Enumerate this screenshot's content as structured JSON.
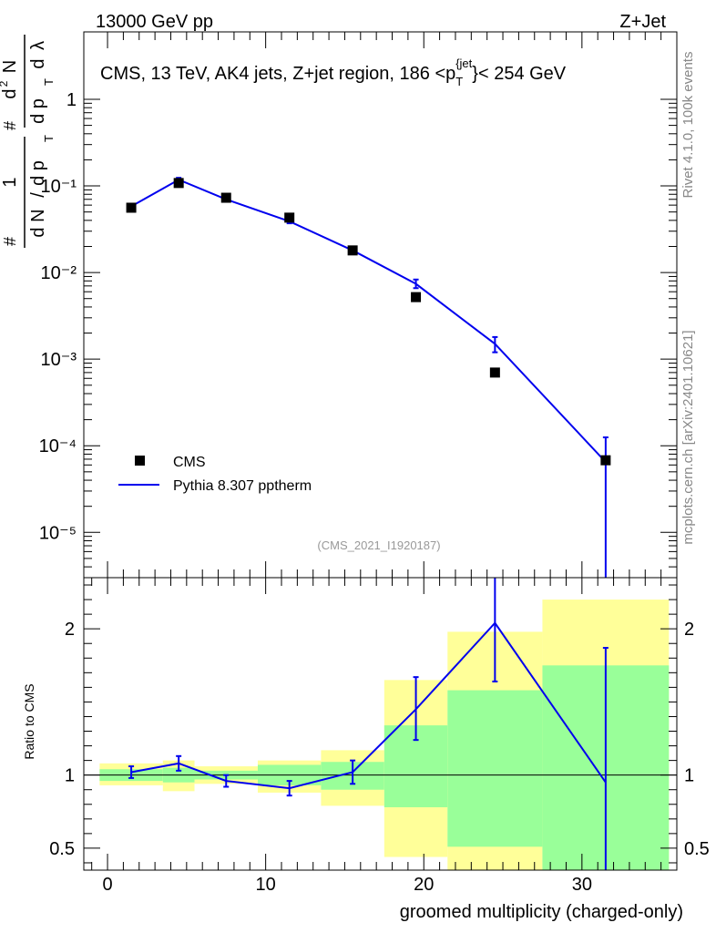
{
  "header": {
    "left": "13000 GeV pp",
    "right": "Z+Jet"
  },
  "side": {
    "rivet": "Rivet 4.1.0,  100k events",
    "mcplots": "mcplots.cern.ch [arXiv:2401.10621]"
  },
  "colors": {
    "data": "#000000",
    "mc": "#0000ee",
    "band_yellow": "#ffff99",
    "band_green": "#99ff99",
    "axis": "#000000",
    "watermark": "#999999"
  },
  "chart_data": [
    {
      "type": "scatter",
      "panel": "main",
      "title": "CMS, 13 TeV, AK4 jets, Z+jet region, 186 <p_T^{jet}< 254 GeV",
      "title_parts": {
        "pre": "CMS, 13 TeV, AK4 jets, Z+jet region, 186 <p",
        "sub": "T",
        "sup": "{jet",
        "post": "}< 254 GeV"
      },
      "ylabel": "#frac{1}{dN/dp_T} #frac{d^2N}{dp_T dλ}",
      "yscale": "log",
      "ylim": [
        3e-06,
        6
      ],
      "xlim": [
        -1.5,
        36
      ],
      "yticks": [
        {
          "value": 1,
          "label": "1"
        },
        {
          "value": 0.1,
          "label": "10⁻¹"
        },
        {
          "value": 0.01,
          "label": "10⁻²"
        },
        {
          "value": 0.001,
          "label": "10⁻³"
        },
        {
          "value": 0.0001,
          "label": "10⁻⁴"
        },
        {
          "value": 1e-05,
          "label": "10⁻⁵"
        }
      ],
      "watermark": "(CMS_2021_I1920187)",
      "legend": [
        {
          "label": "CMS",
          "kind": "marker"
        },
        {
          "label": "Pythia 8.307 pptherm",
          "kind": "line"
        }
      ],
      "series": [
        {
          "name": "CMS",
          "x": [
            1.5,
            4.5,
            7.5,
            11.5,
            15.5,
            19.5,
            24.5,
            31.5
          ],
          "values": [
            0.056,
            0.108,
            0.073,
            0.043,
            0.018,
            0.0052,
            0.0007,
            6.8e-05
          ]
        },
        {
          "name": "Pythia 8.307 pptherm",
          "x": [
            1.5,
            4.5,
            7.5,
            11.5,
            15.5,
            19.5,
            24.5,
            31.5
          ],
          "values": [
            0.058,
            0.118,
            0.07,
            0.039,
            0.018,
            0.0074,
            0.0015,
            6.5e-05
          ],
          "err_up": [
            0.06,
            0.124,
            0.072,
            0.041,
            0.0186,
            0.0083,
            0.0018,
            0.000125
          ],
          "err_down": [
            0.056,
            0.113,
            0.068,
            0.037,
            0.0174,
            0.0066,
            0.0012,
            1e-06
          ]
        }
      ]
    },
    {
      "type": "line",
      "panel": "ratio",
      "ylabel": "Ratio to CMS",
      "xlabel": "groomed multiplicity (charged-only)",
      "ylim": [
        0.35,
        2.35
      ],
      "xlim": [
        -1.5,
        36
      ],
      "yticks": [
        {
          "value": 0.5,
          "label": "0.5"
        },
        {
          "value": 1,
          "label": "1"
        },
        {
          "value": 2,
          "label": "2"
        }
      ],
      "xticks": [
        {
          "value": 0,
          "label": "0"
        },
        {
          "value": 10,
          "label": "10"
        },
        {
          "value": 20,
          "label": "20"
        },
        {
          "value": 30,
          "label": "30"
        }
      ],
      "bands": [
        {
          "x_lo": -0.5,
          "x_hi": 3.5,
          "yellow": [
            0.93,
            1.08
          ],
          "green": [
            0.96,
            1.04
          ]
        },
        {
          "x_lo": 3.5,
          "x_hi": 5.5,
          "yellow": [
            0.89,
            1.1
          ],
          "green": [
            0.95,
            1.05
          ]
        },
        {
          "x_lo": 5.5,
          "x_hi": 9.5,
          "yellow": [
            0.94,
            1.06
          ],
          "green": [
            0.97,
            1.03
          ]
        },
        {
          "x_lo": 9.5,
          "x_hi": 13.5,
          "yellow": [
            0.88,
            1.1
          ],
          "green": [
            0.93,
            1.07
          ]
        },
        {
          "x_lo": 13.5,
          "x_hi": 17.5,
          "yellow": [
            0.79,
            1.17
          ],
          "green": [
            0.9,
            1.09
          ]
        },
        {
          "x_lo": 17.5,
          "x_hi": 21.5,
          "yellow": [
            0.44,
            1.65
          ],
          "green": [
            0.78,
            1.34
          ]
        },
        {
          "x_lo": 21.5,
          "x_hi": 27.5,
          "yellow": [
            0.35,
            1.98
          ],
          "green": [
            0.51,
            1.58
          ]
        },
        {
          "x_lo": 27.5,
          "x_hi": 35.5,
          "yellow": [
            0.35,
            2.2
          ],
          "green": [
            0.35,
            1.75
          ]
        }
      ],
      "series": [
        {
          "name": "Pythia 8.307 pptherm / CMS",
          "x": [
            1.5,
            4.5,
            7.5,
            11.5,
            15.5,
            19.5,
            24.5,
            31.5
          ],
          "values": [
            1.02,
            1.08,
            0.96,
            0.91,
            1.02,
            1.45,
            2.04,
            0.95
          ],
          "err_up": [
            1.06,
            1.13,
            1.0,
            0.96,
            1.1,
            1.67,
            2.35,
            1.87
          ],
          "err_down": [
            0.98,
            1.03,
            0.92,
            0.86,
            0.94,
            1.24,
            1.64,
            0.35
          ]
        }
      ]
    }
  ]
}
